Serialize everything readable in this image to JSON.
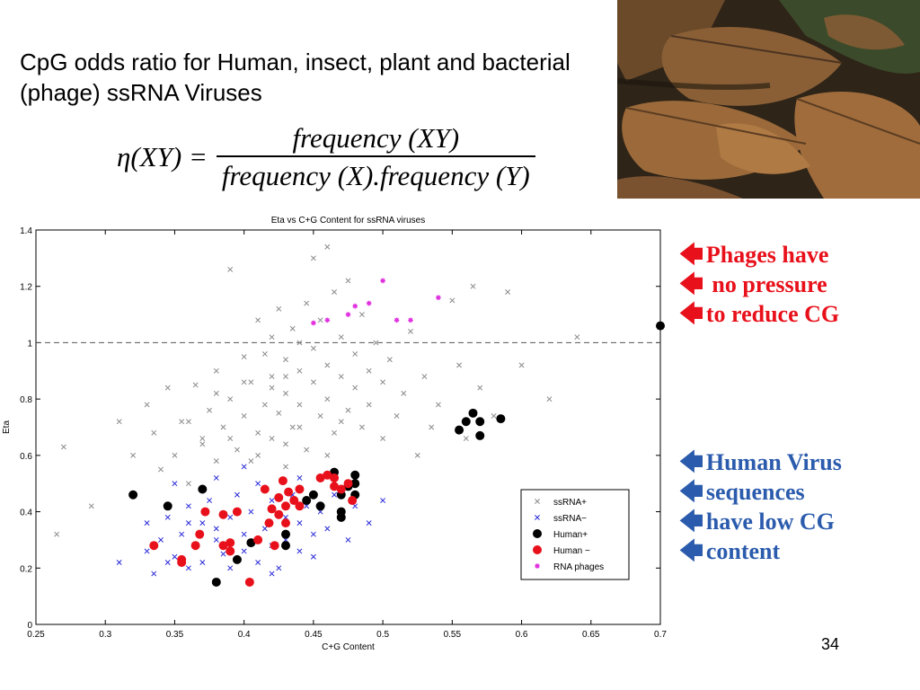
{
  "slide": {
    "title": "CpG odds ratio for Human, insect, plant and bacterial (phage) ssRNA Viruses",
    "page_number": "34"
  },
  "formula": {
    "lhs": "η(XY) =",
    "numerator": "frequency (XY)",
    "denominator": "frequency (X).frequency (Y)"
  },
  "photo": {
    "description_icon": "leaf-litter-photo"
  },
  "annotations": {
    "red_color": "#e8101a",
    "blue_color": "#2b5bad",
    "arrow": "🡄",
    "red_lines": [
      "Phages have",
      " no pressure",
      "to reduce CG"
    ],
    "blue_lines": [
      "Human Virus",
      "sequences",
      "have low CG",
      "content"
    ]
  },
  "chart_data": {
    "type": "scatter",
    "title": "Eta vs C+G Content for ssRNA viruses",
    "xlabel": "C+G Content",
    "ylabel": "Eta",
    "xlim": [
      0.25,
      0.7
    ],
    "ylim": [
      0,
      1.4
    ],
    "xticks": [
      "0.25",
      "0.3",
      "0.35",
      "0.4",
      "0.45",
      "0.5",
      "0.55",
      "0.6",
      "0.65",
      "0.7"
    ],
    "yticks": [
      "0",
      "0.2",
      "0.4",
      "0.6",
      "0.8",
      "1",
      "1.2",
      "1.4"
    ],
    "reference_line_y": 1,
    "legend_position": "bottom-right",
    "series": [
      {
        "name": "ssRNA+",
        "marker": "x",
        "color": "#8a8a8a",
        "points": [
          [
            0.27,
            0.63
          ],
          [
            0.265,
            0.32
          ],
          [
            0.29,
            0.42
          ],
          [
            0.31,
            0.72
          ],
          [
            0.32,
            0.6
          ],
          [
            0.33,
            0.78
          ],
          [
            0.335,
            0.68
          ],
          [
            0.34,
            0.55
          ],
          [
            0.345,
            0.84
          ],
          [
            0.35,
            0.6
          ],
          [
            0.355,
            0.72
          ],
          [
            0.36,
            0.5
          ],
          [
            0.365,
            0.85
          ],
          [
            0.37,
            0.66
          ],
          [
            0.375,
            0.76
          ],
          [
            0.38,
            0.58
          ],
          [
            0.38,
            0.9
          ],
          [
            0.385,
            0.7
          ],
          [
            0.39,
            0.8
          ],
          [
            0.39,
            1.26
          ],
          [
            0.395,
            0.62
          ],
          [
            0.4,
            0.74
          ],
          [
            0.4,
            0.95
          ],
          [
            0.405,
            0.86
          ],
          [
            0.405,
            0.58
          ],
          [
            0.41,
            1.08
          ],
          [
            0.41,
            0.68
          ],
          [
            0.415,
            0.78
          ],
          [
            0.415,
            0.96
          ],
          [
            0.42,
            0.88
          ],
          [
            0.42,
            1.02
          ],
          [
            0.42,
            0.66
          ],
          [
            0.425,
            0.75
          ],
          [
            0.425,
            1.12
          ],
          [
            0.43,
            0.94
          ],
          [
            0.43,
            0.82
          ],
          [
            0.43,
            0.56
          ],
          [
            0.435,
            1.05
          ],
          [
            0.435,
            0.7
          ],
          [
            0.44,
            0.9
          ],
          [
            0.44,
            1.0
          ],
          [
            0.44,
            0.78
          ],
          [
            0.445,
            1.14
          ],
          [
            0.445,
            0.62
          ],
          [
            0.45,
            0.98
          ],
          [
            0.45,
            0.86
          ],
          [
            0.45,
            1.3
          ],
          [
            0.455,
            0.74
          ],
          [
            0.455,
            1.08
          ],
          [
            0.46,
            0.92
          ],
          [
            0.46,
            0.8
          ],
          [
            0.46,
            1.34
          ],
          [
            0.465,
            1.18
          ],
          [
            0.465,
            0.68
          ],
          [
            0.47,
            1.02
          ],
          [
            0.47,
            0.88
          ],
          [
            0.475,
            0.76
          ],
          [
            0.475,
            1.22
          ],
          [
            0.48,
            0.96
          ],
          [
            0.48,
            0.84
          ],
          [
            0.485,
            1.1
          ],
          [
            0.485,
            0.7
          ],
          [
            0.49,
            0.9
          ],
          [
            0.49,
            0.78
          ],
          [
            0.495,
            1.0
          ],
          [
            0.5,
            0.86
          ],
          [
            0.5,
            0.66
          ],
          [
            0.505,
            0.94
          ],
          [
            0.51,
            0.74
          ],
          [
            0.515,
            0.82
          ],
          [
            0.52,
            1.04
          ],
          [
            0.525,
            0.6
          ],
          [
            0.53,
            0.88
          ],
          [
            0.535,
            0.7
          ],
          [
            0.54,
            0.78
          ],
          [
            0.55,
            1.15
          ],
          [
            0.555,
            0.92
          ],
          [
            0.56,
            0.66
          ],
          [
            0.565,
            1.2
          ],
          [
            0.57,
            0.84
          ],
          [
            0.58,
            0.74
          ],
          [
            0.59,
            1.18
          ],
          [
            0.6,
            0.92
          ],
          [
            0.62,
            0.8
          ],
          [
            0.64,
            1.02
          ],
          [
            0.41,
            0.6
          ],
          [
            0.43,
            0.64
          ],
          [
            0.39,
            0.66
          ],
          [
            0.44,
            0.7
          ],
          [
            0.46,
            0.6
          ],
          [
            0.47,
            0.72
          ],
          [
            0.42,
            0.84
          ],
          [
            0.4,
            0.86
          ],
          [
            0.43,
            0.88
          ],
          [
            0.37,
            0.64
          ],
          [
            0.36,
            0.72
          ],
          [
            0.38,
            0.82
          ]
        ]
      },
      {
        "name": "ssRNA−",
        "marker": "x",
        "color": "#2a2ad8",
        "points": [
          [
            0.31,
            0.22
          ],
          [
            0.33,
            0.26
          ],
          [
            0.335,
            0.18
          ],
          [
            0.34,
            0.3
          ],
          [
            0.345,
            0.38
          ],
          [
            0.35,
            0.24
          ],
          [
            0.355,
            0.32
          ],
          [
            0.36,
            0.2
          ],
          [
            0.36,
            0.42
          ],
          [
            0.365,
            0.28
          ],
          [
            0.37,
            0.36
          ],
          [
            0.37,
            0.22
          ],
          [
            0.375,
            0.44
          ],
          [
            0.38,
            0.3
          ],
          [
            0.38,
            0.52
          ],
          [
            0.385,
            0.25
          ],
          [
            0.39,
            0.38
          ],
          [
            0.39,
            0.2
          ],
          [
            0.395,
            0.46
          ],
          [
            0.4,
            0.32
          ],
          [
            0.4,
            0.26
          ],
          [
            0.405,
            0.4
          ],
          [
            0.41,
            0.22
          ],
          [
            0.41,
            0.5
          ],
          [
            0.415,
            0.34
          ],
          [
            0.42,
            0.28
          ],
          [
            0.42,
            0.44
          ],
          [
            0.425,
            0.2
          ],
          [
            0.43,
            0.38
          ],
          [
            0.43,
            0.3
          ],
          [
            0.435,
            0.46
          ],
          [
            0.44,
            0.26
          ],
          [
            0.44,
            0.36
          ],
          [
            0.445,
            0.42
          ],
          [
            0.45,
            0.32
          ],
          [
            0.45,
            0.24
          ],
          [
            0.455,
            0.4
          ],
          [
            0.46,
            0.34
          ],
          [
            0.465,
            0.46
          ],
          [
            0.47,
            0.38
          ],
          [
            0.475,
            0.3
          ],
          [
            0.48,
            0.42
          ],
          [
            0.49,
            0.36
          ],
          [
            0.5,
            0.44
          ],
          [
            0.35,
            0.5
          ],
          [
            0.4,
            0.56
          ],
          [
            0.44,
            0.52
          ],
          [
            0.38,
            0.34
          ],
          [
            0.36,
            0.36
          ],
          [
            0.42,
            0.18
          ],
          [
            0.33,
            0.36
          ],
          [
            0.345,
            0.22
          ]
        ]
      },
      {
        "name": "Human+",
        "marker": "o",
        "color": "#000000",
        "points": [
          [
            0.32,
            0.46
          ],
          [
            0.345,
            0.42
          ],
          [
            0.37,
            0.48
          ],
          [
            0.38,
            0.15
          ],
          [
            0.395,
            0.23
          ],
          [
            0.405,
            0.29
          ],
          [
            0.43,
            0.28
          ],
          [
            0.43,
            0.32
          ],
          [
            0.445,
            0.44
          ],
          [
            0.45,
            0.46
          ],
          [
            0.455,
            0.42
          ],
          [
            0.465,
            0.54
          ],
          [
            0.47,
            0.46
          ],
          [
            0.47,
            0.4
          ],
          [
            0.47,
            0.38
          ],
          [
            0.475,
            0.49
          ],
          [
            0.48,
            0.53
          ],
          [
            0.48,
            0.5
          ],
          [
            0.48,
            0.46
          ],
          [
            0.555,
            0.69
          ],
          [
            0.56,
            0.72
          ],
          [
            0.565,
            0.75
          ],
          [
            0.57,
            0.72
          ],
          [
            0.57,
            0.67
          ],
          [
            0.585,
            0.73
          ],
          [
            0.7,
            1.06
          ]
        ]
      },
      {
        "name": "Human −",
        "marker": "o",
        "color": "#e8101a",
        "points": [
          [
            0.335,
            0.28
          ],
          [
            0.355,
            0.22
          ],
          [
            0.355,
            0.23
          ],
          [
            0.365,
            0.28
          ],
          [
            0.368,
            0.32
          ],
          [
            0.372,
            0.4
          ],
          [
            0.385,
            0.28
          ],
          [
            0.385,
            0.39
          ],
          [
            0.39,
            0.29
          ],
          [
            0.39,
            0.26
          ],
          [
            0.395,
            0.4
          ],
          [
            0.404,
            0.15
          ],
          [
            0.41,
            0.3
          ],
          [
            0.415,
            0.48
          ],
          [
            0.418,
            0.36
          ],
          [
            0.42,
            0.41
          ],
          [
            0.422,
            0.28
          ],
          [
            0.425,
            0.45
          ],
          [
            0.425,
            0.39
          ],
          [
            0.428,
            0.51
          ],
          [
            0.43,
            0.42
          ],
          [
            0.43,
            0.36
          ],
          [
            0.432,
            0.47
          ],
          [
            0.436,
            0.44
          ],
          [
            0.44,
            0.42
          ],
          [
            0.44,
            0.48
          ],
          [
            0.46,
            0.53
          ],
          [
            0.465,
            0.52
          ],
          [
            0.465,
            0.49
          ],
          [
            0.47,
            0.48
          ],
          [
            0.475,
            0.5
          ],
          [
            0.478,
            0.44
          ],
          [
            0.455,
            0.52
          ]
        ]
      },
      {
        "name": "RNA phages",
        "marker": "*",
        "color": "#e030e0",
        "points": [
          [
            0.45,
            1.07
          ],
          [
            0.46,
            1.08
          ],
          [
            0.48,
            1.13
          ],
          [
            0.49,
            1.14
          ],
          [
            0.5,
            1.22
          ],
          [
            0.51,
            1.08
          ],
          [
            0.52,
            1.08
          ],
          [
            0.54,
            1.16
          ],
          [
            0.475,
            1.1
          ]
        ]
      }
    ]
  }
}
